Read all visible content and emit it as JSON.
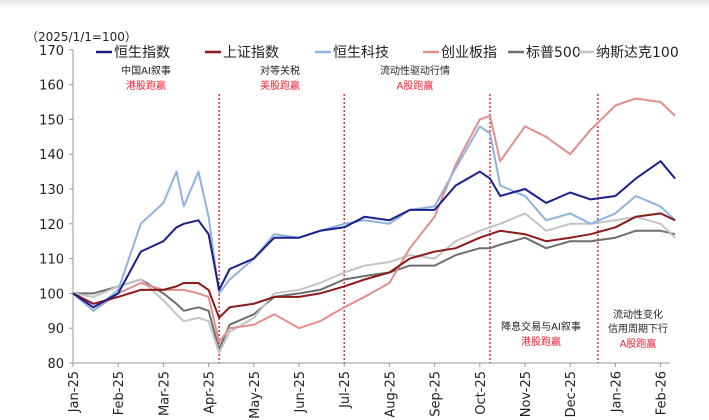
{
  "chart_data": {
    "type": "line",
    "unit_note": "（2025/1/1=100）",
    "ylim": [
      80,
      170
    ],
    "yticks": [
      80,
      90,
      100,
      110,
      120,
      130,
      140,
      150,
      160,
      170
    ],
    "xticks": [
      "Jan-25",
      "Feb-25",
      "Mar-25",
      "Apr-25",
      "May-25",
      "Jun-25",
      "Jul-25",
      "Aug-25",
      "Sep-25",
      "Oct-25",
      "Nov-25",
      "Dec-25",
      "Jan-26",
      "Feb-26"
    ],
    "legend_position": "top",
    "grid": false,
    "x": [
      "2025-01-01",
      "2025-01-15",
      "2025-02-01",
      "2025-02-15",
      "2025-03-01",
      "2025-03-10",
      "2025-03-15",
      "2025-03-25",
      "2025-04-01",
      "2025-04-08",
      "2025-04-15",
      "2025-05-01",
      "2025-05-15",
      "2025-06-01",
      "2025-06-15",
      "2025-07-01",
      "2025-07-15",
      "2025-08-01",
      "2025-08-15",
      "2025-09-01",
      "2025-09-15",
      "2025-10-01",
      "2025-10-08",
      "2025-10-15",
      "2025-11-01",
      "2025-11-15",
      "2025-12-01",
      "2025-12-15",
      "2026-01-01",
      "2026-01-15",
      "2026-02-01",
      "2026-02-10"
    ],
    "series": [
      {
        "name": "恒生指数",
        "color": "#1a1f8c",
        "values": [
          100,
          96,
          100,
          112,
          115,
          119,
          120,
          121,
          117,
          101,
          107,
          110,
          116,
          116,
          118,
          119,
          122,
          121,
          124,
          124,
          131,
          135,
          133,
          128,
          130,
          126,
          129,
          127,
          128,
          133,
          138,
          133
        ]
      },
      {
        "name": "上证指数",
        "color": "#8b1a1a",
        "values": [
          100,
          97,
          99,
          101,
          101,
          102,
          103,
          103,
          101,
          93,
          96,
          97,
          99,
          99,
          100,
          102,
          104,
          106,
          110,
          112,
          113,
          116,
          117,
          118,
          117,
          115,
          116,
          117,
          119,
          122,
          123,
          121
        ]
      },
      {
        "name": "恒生科技",
        "color": "#8fb2e0",
        "values": [
          100,
          95,
          101,
          120,
          126,
          135,
          125,
          135,
          122,
          100,
          104,
          110,
          117,
          116,
          118,
          120,
          121,
          120,
          124,
          125,
          136,
          148,
          146,
          131,
          128,
          121,
          123,
          120,
          123,
          128,
          125,
          121
        ]
      },
      {
        "name": "创业板指",
        "color": "#e0908a",
        "values": [
          100,
          95,
          100,
          103,
          101,
          101,
          101,
          100,
          99,
          86,
          90,
          91,
          94,
          90,
          92,
          96,
          99,
          103,
          113,
          122,
          137,
          150,
          151,
          138,
          148,
          145,
          140,
          147,
          154,
          156,
          155,
          151
        ]
      },
      {
        "name": "标普500",
        "color": "#6e6e6e",
        "values": [
          100,
          100,
          102,
          104,
          100,
          97,
          95,
          96,
          95,
          84,
          91,
          94,
          99,
          100,
          101,
          104,
          105,
          106,
          108,
          108,
          111,
          113,
          113,
          114,
          116,
          113,
          115,
          115,
          116,
          118,
          118,
          117
        ]
      },
      {
        "name": "纳斯达克100",
        "color": "#c4c4c4",
        "values": [
          100,
          99,
          102,
          104,
          98,
          94,
          92,
          93,
          92,
          83,
          89,
          93,
          100,
          101,
          103,
          106,
          108,
          109,
          111,
          110,
          115,
          118,
          119,
          120,
          123,
          118,
          120,
          120,
          121,
          122,
          120,
          116
        ]
      }
    ],
    "dividers": [
      "2025-04-08",
      "2025-07-01",
      "2025-10-08",
      "2025-12-20"
    ],
    "annotations": [
      {
        "line1": "中国AI叙事",
        "line2": "",
        "verdict": "港股跑赢"
      },
      {
        "line1": "对等关税",
        "line2": "",
        "verdict": "美股跑赢"
      },
      {
        "line1": "流动性驱动行情",
        "line2": "",
        "verdict": "A股跑赢"
      },
      {
        "line1": "降息交易与AI叙事",
        "line2": "",
        "verdict": "港股跑赢"
      },
      {
        "line1": "流动性变化",
        "line2": "信用周期下行",
        "verdict": "A股跑赢"
      }
    ]
  }
}
